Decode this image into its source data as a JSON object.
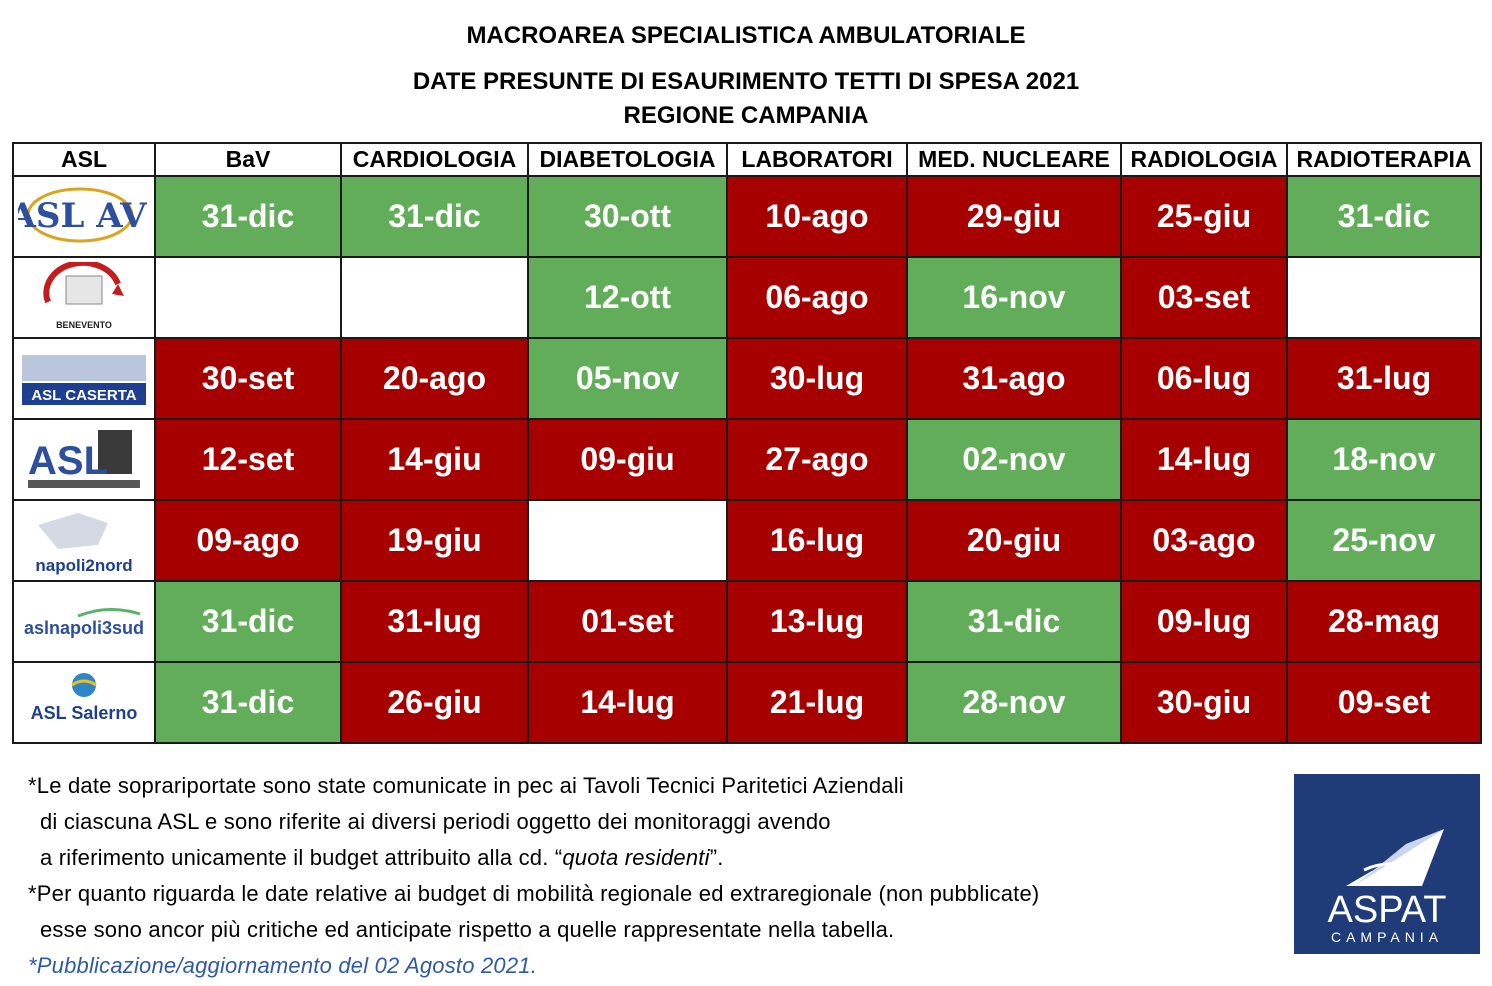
{
  "header": {
    "line1": "MACROAREA SPECIALISTICA AMBULATORIALE",
    "line2": "DATE PRESUNTE DI ESAURIMENTO TETTI DI SPESA  2021",
    "line3": "REGIONE CAMPANIA"
  },
  "table": {
    "columns": [
      "ASL",
      "BaV",
      "CARDIOLOGIA",
      "DIABETOLOGIA",
      "LABORATORI",
      "MED. NUCLEARE",
      "RADIOLOGIA",
      "RADIOTERAPIA"
    ],
    "rows": [
      {
        "asl_logo": "asl-avellino-logo",
        "logo_text": "ASL AV",
        "cells": [
          {
            "v": "31-dic",
            "s": "green"
          },
          {
            "v": "31-dic",
            "s": "green"
          },
          {
            "v": "30-ott",
            "s": "green"
          },
          {
            "v": "10-ago",
            "s": "red"
          },
          {
            "v": "29-giu",
            "s": "red"
          },
          {
            "v": "25-giu",
            "s": "red"
          },
          {
            "v": "31-dic",
            "s": "green"
          }
        ]
      },
      {
        "asl_logo": "asl-benevento-logo",
        "logo_text": "BENEVENTO",
        "cells": [
          {
            "v": "",
            "s": "empty"
          },
          {
            "v": "",
            "s": "empty"
          },
          {
            "v": "12-ott",
            "s": "green"
          },
          {
            "v": "06-ago",
            "s": "red"
          },
          {
            "v": "16-nov",
            "s": "green"
          },
          {
            "v": "03-set",
            "s": "red"
          },
          {
            "v": "",
            "s": "empty"
          }
        ]
      },
      {
        "asl_logo": "asl-caserta-logo",
        "logo_text": "ASL CASERTA",
        "cells": [
          {
            "v": "30-set",
            "s": "red"
          },
          {
            "v": "20-ago",
            "s": "red"
          },
          {
            "v": "05-nov",
            "s": "green"
          },
          {
            "v": "30-lug",
            "s": "red"
          },
          {
            "v": "31-ago",
            "s": "red"
          },
          {
            "v": "06-lug",
            "s": "red"
          },
          {
            "v": "31-lug",
            "s": "red"
          }
        ]
      },
      {
        "asl_logo": "asl-napoli1-logo",
        "logo_text": "ASL",
        "cells": [
          {
            "v": "12-set",
            "s": "red"
          },
          {
            "v": "14-giu",
            "s": "red"
          },
          {
            "v": "09-giu",
            "s": "red"
          },
          {
            "v": "27-ago",
            "s": "red"
          },
          {
            "v": "02-nov",
            "s": "green"
          },
          {
            "v": "14-lug",
            "s": "red"
          },
          {
            "v": "18-nov",
            "s": "green"
          }
        ]
      },
      {
        "asl_logo": "asl-napoli2nord-logo",
        "logo_text": "napoli2nord",
        "cells": [
          {
            "v": "09-ago",
            "s": "red"
          },
          {
            "v": "19-giu",
            "s": "red"
          },
          {
            "v": "",
            "s": "empty"
          },
          {
            "v": "16-lug",
            "s": "red"
          },
          {
            "v": "20-giu",
            "s": "red"
          },
          {
            "v": "03-ago",
            "s": "red"
          },
          {
            "v": "25-nov",
            "s": "green"
          }
        ]
      },
      {
        "asl_logo": "asl-napoli3sud-logo",
        "logo_text": "aslnapoli3sud",
        "cells": [
          {
            "v": "31-dic",
            "s": "green"
          },
          {
            "v": "31-lug",
            "s": "red"
          },
          {
            "v": "01-set",
            "s": "red"
          },
          {
            "v": "13-lug",
            "s": "red"
          },
          {
            "v": "31-dic",
            "s": "green"
          },
          {
            "v": "09-lug",
            "s": "red"
          },
          {
            "v": "28-mag",
            "s": "red"
          }
        ]
      },
      {
        "asl_logo": "asl-salerno-logo",
        "logo_text": "ASL Salerno",
        "cells": [
          {
            "v": "31-dic",
            "s": "green"
          },
          {
            "v": "26-giu",
            "s": "red"
          },
          {
            "v": "14-lug",
            "s": "red"
          },
          {
            "v": "21-lug",
            "s": "red"
          },
          {
            "v": "28-nov",
            "s": "green"
          },
          {
            "v": "30-giu",
            "s": "red"
          },
          {
            "v": "09-set",
            "s": "red"
          }
        ]
      }
    ]
  },
  "notes": {
    "n1a": "*Le date soprariportate sono state comunicate in pec ai Tavoli Tecnici Paritetici Aziendali",
    "n1b": "di ciascuna ASL e sono riferite ai diversi periodi oggetto dei monitoraggi avendo",
    "n1c_pre": "a riferimento unicamente il budget attribuito alla cd. “",
    "n1c_em": "quota residenti",
    "n1c_post": "”.",
    "n2a": "*Per quanto riguarda le date relative ai budget di mobilità regionale ed extraregionale (non pubblicate)",
    "n2b": "esse sono ancor più critiche ed anticipate rispetto a quelle rappresentate nella tabella.",
    "pub": "*Pubblicazione/aggiornamento  del 02 Agosto 2021."
  },
  "aspat_logo": {
    "name": "ASPAT",
    "sub": "CAMPANIA"
  },
  "colors": {
    "green": "#62ad5a",
    "red": "#a60000",
    "aspat_bg": "#1f3c78",
    "note_blue": "#2f5aa8"
  }
}
